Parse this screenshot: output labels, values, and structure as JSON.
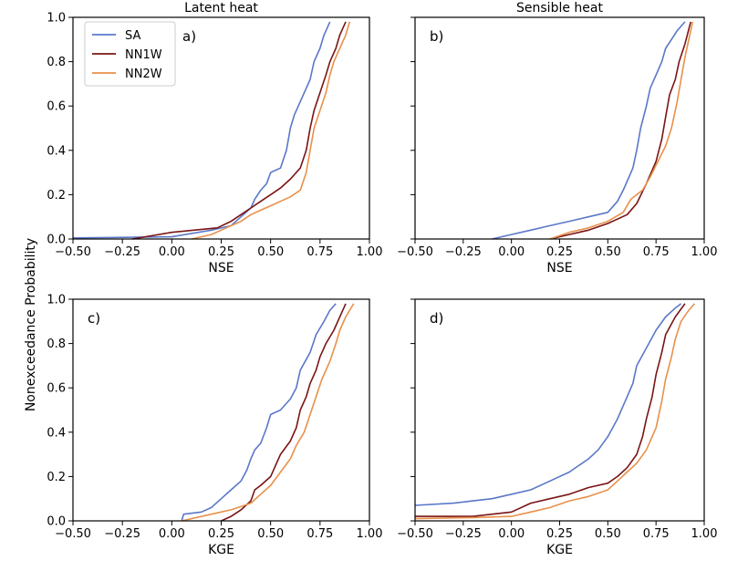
{
  "figure": {
    "ylabel": "Nonexceedance Probability"
  },
  "chart_data": [
    {
      "type": "line",
      "panel": "a)",
      "title": "Latent heat",
      "xlabel": "NSE",
      "ylabel": "Nonexceedance Probability",
      "xlim": [
        -0.5,
        1.0
      ],
      "ylim": [
        0.0,
        1.0
      ],
      "xticks": [
        "−0.50",
        "−0.25",
        "0.00",
        "0.25",
        "0.50",
        "0.75",
        "1.00"
      ],
      "yticks": [
        "0.0",
        "0.2",
        "0.4",
        "0.6",
        "0.8",
        "1.0"
      ],
      "legend": {
        "position": "top-left",
        "entries": [
          "SA",
          "NN1W",
          "NN2W"
        ]
      },
      "series": [
        {
          "name": "SA",
          "color": "#5a78c8",
          "points": [
            [
              -0.5,
              0.005
            ],
            [
              0.0,
              0.01
            ],
            [
              0.2,
              0.04
            ],
            [
              0.3,
              0.06
            ],
            [
              0.35,
              0.1
            ],
            [
              0.4,
              0.14
            ],
            [
              0.42,
              0.18
            ],
            [
              0.45,
              0.22
            ],
            [
              0.48,
              0.25
            ],
            [
              0.5,
              0.3
            ],
            [
              0.55,
              0.32
            ],
            [
              0.58,
              0.4
            ],
            [
              0.6,
              0.5
            ],
            [
              0.62,
              0.56
            ],
            [
              0.65,
              0.62
            ],
            [
              0.68,
              0.68
            ],
            [
              0.7,
              0.72
            ],
            [
              0.72,
              0.8
            ],
            [
              0.75,
              0.86
            ],
            [
              0.77,
              0.92
            ],
            [
              0.8,
              0.98
            ]
          ]
        },
        {
          "name": "NN1W",
          "color": "#7a1414",
          "points": [
            [
              -0.2,
              0.0
            ],
            [
              0.0,
              0.03
            ],
            [
              0.23,
              0.05
            ],
            [
              0.3,
              0.08
            ],
            [
              0.35,
              0.11
            ],
            [
              0.4,
              0.14
            ],
            [
              0.45,
              0.17
            ],
            [
              0.5,
              0.2
            ],
            [
              0.55,
              0.23
            ],
            [
              0.6,
              0.27
            ],
            [
              0.65,
              0.32
            ],
            [
              0.68,
              0.4
            ],
            [
              0.7,
              0.5
            ],
            [
              0.72,
              0.58
            ],
            [
              0.75,
              0.66
            ],
            [
              0.78,
              0.74
            ],
            [
              0.8,
              0.8
            ],
            [
              0.83,
              0.86
            ],
            [
              0.85,
              0.92
            ],
            [
              0.88,
              0.98
            ]
          ]
        },
        {
          "name": "NN2W",
          "color": "#e8904a",
          "points": [
            [
              0.1,
              0.0
            ],
            [
              0.2,
              0.02
            ],
            [
              0.25,
              0.04
            ],
            [
              0.3,
              0.06
            ],
            [
              0.35,
              0.08
            ],
            [
              0.4,
              0.11
            ],
            [
              0.45,
              0.13
            ],
            [
              0.5,
              0.15
            ],
            [
              0.55,
              0.17
            ],
            [
              0.6,
              0.19
            ],
            [
              0.65,
              0.22
            ],
            [
              0.68,
              0.3
            ],
            [
              0.7,
              0.4
            ],
            [
              0.72,
              0.5
            ],
            [
              0.75,
              0.58
            ],
            [
              0.78,
              0.66
            ],
            [
              0.8,
              0.74
            ],
            [
              0.82,
              0.8
            ],
            [
              0.85,
              0.86
            ],
            [
              0.88,
              0.92
            ],
            [
              0.9,
              0.98
            ]
          ]
        }
      ]
    },
    {
      "type": "line",
      "panel": "b)",
      "title": "Sensible heat",
      "xlabel": "NSE",
      "xlim": [
        -0.5,
        1.0
      ],
      "ylim": [
        0.0,
        1.0
      ],
      "xticks": [
        "−0.50",
        "−0.25",
        "0.00",
        "0.25",
        "0.50",
        "0.75",
        "1.00"
      ],
      "series": [
        {
          "name": "SA",
          "color": "#5a78c8",
          "points": [
            [
              -0.1,
              0.0
            ],
            [
              0.0,
              0.02
            ],
            [
              0.1,
              0.04
            ],
            [
              0.2,
              0.06
            ],
            [
              0.3,
              0.08
            ],
            [
              0.4,
              0.1
            ],
            [
              0.5,
              0.12
            ],
            [
              0.55,
              0.17
            ],
            [
              0.58,
              0.22
            ],
            [
              0.6,
              0.26
            ],
            [
              0.63,
              0.32
            ],
            [
              0.65,
              0.4
            ],
            [
              0.67,
              0.5
            ],
            [
              0.7,
              0.6
            ],
            [
              0.72,
              0.68
            ],
            [
              0.75,
              0.74
            ],
            [
              0.78,
              0.8
            ],
            [
              0.8,
              0.86
            ],
            [
              0.83,
              0.9
            ],
            [
              0.86,
              0.94
            ],
            [
              0.9,
              0.98
            ]
          ]
        },
        {
          "name": "NN1W",
          "color": "#7a1414",
          "points": [
            [
              0.2,
              0.0
            ],
            [
              0.3,
              0.02
            ],
            [
              0.4,
              0.04
            ],
            [
              0.5,
              0.07
            ],
            [
              0.6,
              0.11
            ],
            [
              0.65,
              0.16
            ],
            [
              0.7,
              0.25
            ],
            [
              0.75,
              0.35
            ],
            [
              0.78,
              0.45
            ],
            [
              0.8,
              0.55
            ],
            [
              0.82,
              0.65
            ],
            [
              0.85,
              0.72
            ],
            [
              0.87,
              0.8
            ],
            [
              0.9,
              0.88
            ],
            [
              0.93,
              0.98
            ]
          ]
        },
        {
          "name": "NN2W",
          "color": "#e8904a",
          "points": [
            [
              0.2,
              0.0
            ],
            [
              0.3,
              0.03
            ],
            [
              0.4,
              0.05
            ],
            [
              0.5,
              0.08
            ],
            [
              0.58,
              0.12
            ],
            [
              0.62,
              0.18
            ],
            [
              0.68,
              0.22
            ],
            [
              0.72,
              0.28
            ],
            [
              0.76,
              0.35
            ],
            [
              0.8,
              0.42
            ],
            [
              0.83,
              0.5
            ],
            [
              0.86,
              0.62
            ],
            [
              0.88,
              0.72
            ],
            [
              0.9,
              0.82
            ],
            [
              0.92,
              0.9
            ],
            [
              0.94,
              0.98
            ]
          ]
        }
      ]
    },
    {
      "type": "line",
      "panel": "c)",
      "title": "",
      "xlabel": "KGE",
      "xlim": [
        -0.5,
        1.0
      ],
      "ylim": [
        0.0,
        1.0
      ],
      "xticks": [
        "−0.50",
        "−0.25",
        "0.00",
        "0.25",
        "0.50",
        "0.75",
        "1.00"
      ],
      "yticks": [
        "0.0",
        "0.2",
        "0.4",
        "0.6",
        "0.8",
        "1.0"
      ],
      "series": [
        {
          "name": "SA",
          "color": "#5a78c8",
          "points": [
            [
              0.05,
              0.0
            ],
            [
              0.06,
              0.03
            ],
            [
              0.15,
              0.04
            ],
            [
              0.2,
              0.06
            ],
            [
              0.25,
              0.1
            ],
            [
              0.3,
              0.14
            ],
            [
              0.35,
              0.18
            ],
            [
              0.38,
              0.23
            ],
            [
              0.4,
              0.28
            ],
            [
              0.42,
              0.32
            ],
            [
              0.45,
              0.35
            ],
            [
              0.48,
              0.42
            ],
            [
              0.5,
              0.48
            ],
            [
              0.55,
              0.5
            ],
            [
              0.6,
              0.55
            ],
            [
              0.63,
              0.6
            ],
            [
              0.65,
              0.68
            ],
            [
              0.7,
              0.76
            ],
            [
              0.73,
              0.84
            ],
            [
              0.77,
              0.9
            ],
            [
              0.8,
              0.95
            ],
            [
              0.83,
              0.98
            ]
          ]
        },
        {
          "name": "NN1W",
          "color": "#7a1414",
          "points": [
            [
              0.25,
              0.0
            ],
            [
              0.3,
              0.02
            ],
            [
              0.35,
              0.05
            ],
            [
              0.4,
              0.09
            ],
            [
              0.42,
              0.14
            ],
            [
              0.45,
              0.16
            ],
            [
              0.5,
              0.2
            ],
            [
              0.55,
              0.3
            ],
            [
              0.6,
              0.36
            ],
            [
              0.63,
              0.42
            ],
            [
              0.65,
              0.5
            ],
            [
              0.68,
              0.56
            ],
            [
              0.7,
              0.62
            ],
            [
              0.73,
              0.68
            ],
            [
              0.75,
              0.74
            ],
            [
              0.78,
              0.8
            ],
            [
              0.82,
              0.86
            ],
            [
              0.85,
              0.92
            ],
            [
              0.88,
              0.98
            ]
          ]
        },
        {
          "name": "NN2W",
          "color": "#e8904a",
          "points": [
            [
              0.05,
              0.0
            ],
            [
              0.2,
              0.03
            ],
            [
              0.3,
              0.05
            ],
            [
              0.4,
              0.08
            ],
            [
              0.45,
              0.12
            ],
            [
              0.5,
              0.16
            ],
            [
              0.55,
              0.22
            ],
            [
              0.6,
              0.28
            ],
            [
              0.63,
              0.34
            ],
            [
              0.67,
              0.4
            ],
            [
              0.7,
              0.48
            ],
            [
              0.73,
              0.56
            ],
            [
              0.76,
              0.64
            ],
            [
              0.8,
              0.72
            ],
            [
              0.83,
              0.8
            ],
            [
              0.85,
              0.86
            ],
            [
              0.88,
              0.92
            ],
            [
              0.92,
              0.98
            ]
          ]
        }
      ]
    },
    {
      "type": "line",
      "panel": "d)",
      "title": "",
      "xlabel": "KGE",
      "xlim": [
        -0.5,
        1.0
      ],
      "ylim": [
        0.0,
        1.0
      ],
      "xticks": [
        "−0.50",
        "−0.25",
        "0.00",
        "0.25",
        "0.50",
        "0.75",
        "1.00"
      ],
      "series": [
        {
          "name": "SA",
          "color": "#5a78c8",
          "points": [
            [
              -0.5,
              0.07
            ],
            [
              -0.3,
              0.08
            ],
            [
              -0.2,
              0.09
            ],
            [
              -0.1,
              0.1
            ],
            [
              0.0,
              0.12
            ],
            [
              0.1,
              0.14
            ],
            [
              0.2,
              0.18
            ],
            [
              0.3,
              0.22
            ],
            [
              0.4,
              0.28
            ],
            [
              0.45,
              0.32
            ],
            [
              0.5,
              0.38
            ],
            [
              0.55,
              0.46
            ],
            [
              0.6,
              0.56
            ],
            [
              0.63,
              0.62
            ],
            [
              0.65,
              0.7
            ],
            [
              0.7,
              0.78
            ],
            [
              0.75,
              0.86
            ],
            [
              0.8,
              0.92
            ],
            [
              0.85,
              0.96
            ],
            [
              0.88,
              0.98
            ]
          ]
        },
        {
          "name": "NN1W",
          "color": "#7a1414",
          "points": [
            [
              -0.5,
              0.02
            ],
            [
              -0.2,
              0.02
            ],
            [
              0.0,
              0.04
            ],
            [
              0.1,
              0.08
            ],
            [
              0.2,
              0.1
            ],
            [
              0.3,
              0.12
            ],
            [
              0.4,
              0.15
            ],
            [
              0.5,
              0.17
            ],
            [
              0.55,
              0.2
            ],
            [
              0.6,
              0.24
            ],
            [
              0.65,
              0.3
            ],
            [
              0.68,
              0.38
            ],
            [
              0.7,
              0.46
            ],
            [
              0.73,
              0.56
            ],
            [
              0.75,
              0.66
            ],
            [
              0.78,
              0.76
            ],
            [
              0.8,
              0.84
            ],
            [
              0.85,
              0.92
            ],
            [
              0.9,
              0.98
            ]
          ]
        },
        {
          "name": "NN2W",
          "color": "#e8904a",
          "points": [
            [
              -0.5,
              0.01
            ],
            [
              -0.2,
              0.015
            ],
            [
              0.0,
              0.02
            ],
            [
              0.1,
              0.04
            ],
            [
              0.2,
              0.06
            ],
            [
              0.3,
              0.09
            ],
            [
              0.4,
              0.11
            ],
            [
              0.5,
              0.14
            ],
            [
              0.55,
              0.18
            ],
            [
              0.6,
              0.22
            ],
            [
              0.65,
              0.26
            ],
            [
              0.7,
              0.32
            ],
            [
              0.75,
              0.42
            ],
            [
              0.78,
              0.54
            ],
            [
              0.8,
              0.64
            ],
            [
              0.83,
              0.74
            ],
            [
              0.85,
              0.82
            ],
            [
              0.88,
              0.9
            ],
            [
              0.92,
              0.95
            ],
            [
              0.95,
              0.98
            ]
          ]
        }
      ]
    }
  ]
}
